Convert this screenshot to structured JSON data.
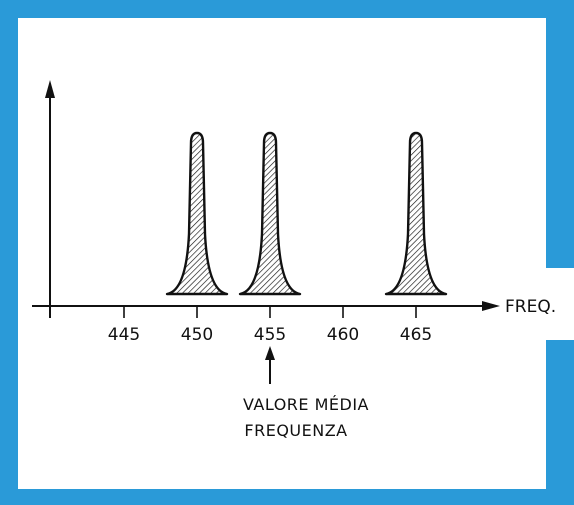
{
  "frame_color": "#2a9ad8",
  "axis_label": "FREQ.",
  "ticks": [
    "445",
    "450",
    "455",
    "460",
    "465"
  ],
  "peaks": [
    450,
    455,
    465
  ],
  "annotation": {
    "line1": "VALORE MÉDIA",
    "line2": "FREQUENZA",
    "points_to": 455
  }
}
